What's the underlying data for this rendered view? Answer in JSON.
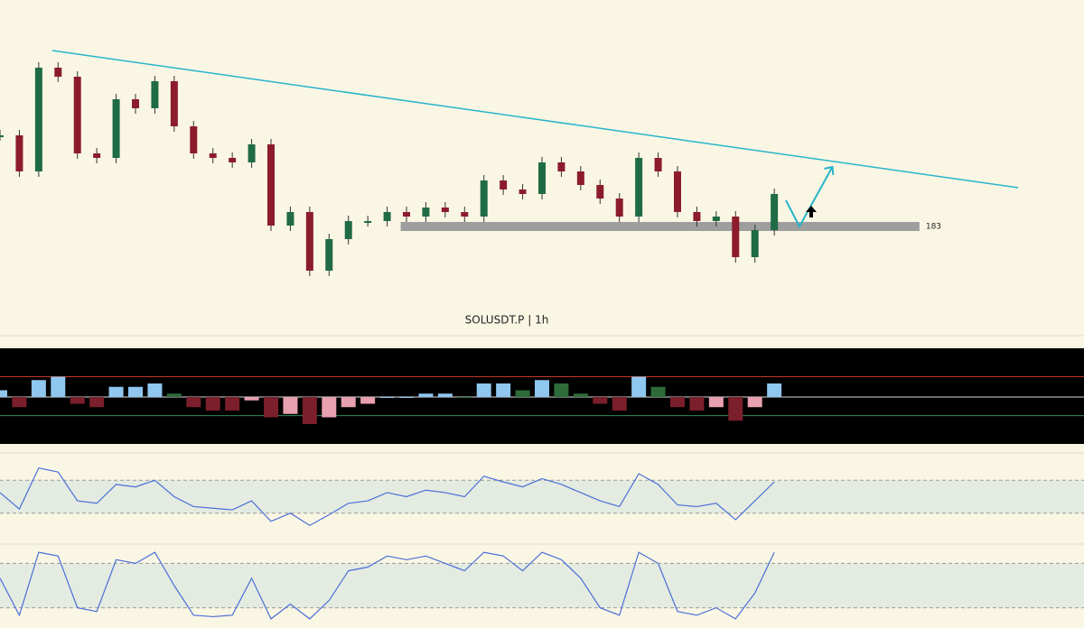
{
  "chart_data": {
    "type": "candlestick",
    "title": "SOLUSDT.P | 1h",
    "xlim": [
      0,
      56
    ],
    "ylim": [
      171,
      208
    ],
    "close": [
      193.1,
      189.1,
      200.6,
      199.6,
      191.1,
      190.6,
      197.1,
      196.1,
      199.1,
      194.1,
      191.1,
      190.6,
      190.1,
      192.1,
      183.1,
      184.6,
      178.1,
      181.6,
      183.6,
      183.6,
      184.6,
      184.1,
      185.1,
      184.6,
      184.1,
      188.1,
      187.1,
      186.6,
      190.1,
      189.1,
      187.6,
      186.1,
      184.1,
      190.6,
      189.1,
      184.6,
      183.6,
      184.1,
      179.6,
      182.6,
      186.6
    ],
    "up_color": "#1f6b45",
    "down_color": "#8c1c2c",
    "trendline": {
      "x": [
        2.7,
        52.6
      ],
      "y": [
        202.5,
        187.3
      ],
      "color": "#26b5c9"
    },
    "level": {
      "value": 183,
      "x": [
        20.7,
        47.5
      ],
      "color": "#9e9e9e"
    },
    "projection": {
      "x": [
        40.6,
        41.3,
        43.0
      ],
      "y": [
        185.9,
        183,
        189.6
      ],
      "color": "#26b5c9"
    },
    "indicators": [
      {
        "type": "histogram",
        "ylim": [
          -1.2,
          1.2
        ],
        "levels": [
          0.6,
          0,
          -0.55
        ],
        "level_colors": [
          "#c0392b",
          "#dddddd",
          "#2e8b57"
        ],
        "values": [
          0.2,
          -0.3,
          0.5,
          0.6,
          -0.2,
          -0.3,
          0.3,
          0.3,
          0.4,
          0.1,
          -0.3,
          -0.4,
          -0.4,
          -0.1,
          -0.6,
          -0.5,
          -0.8,
          -0.6,
          -0.3,
          -0.2,
          0.0,
          0.0,
          0.1,
          0.1,
          0.0,
          0.4,
          0.4,
          0.2,
          0.5,
          0.4,
          0.1,
          -0.2,
          -0.4,
          0.6,
          0.3,
          -0.3,
          -0.4,
          -0.3,
          -0.7,
          -0.3,
          0.4
        ]
      },
      {
        "type": "line",
        "ylim": [
          0,
          100
        ],
        "band": [
          30,
          70
        ],
        "color": "#4a6fd8",
        "values": [
          55,
          35,
          85,
          80,
          45,
          42,
          65,
          62,
          70,
          50,
          38,
          36,
          34,
          45,
          20,
          30,
          15,
          28,
          42,
          45,
          55,
          50,
          58,
          55,
          50,
          75,
          68,
          62,
          72,
          65,
          55,
          45,
          38,
          78,
          65,
          40,
          38,
          42,
          22,
          45,
          68
        ]
      },
      {
        "type": "line",
        "ylim": [
          0,
          100
        ],
        "band": [
          20,
          80
        ],
        "color": "#4a6fd8",
        "values": [
          60,
          10,
          95,
          90,
          20,
          15,
          85,
          80,
          95,
          50,
          10,
          8,
          10,
          60,
          5,
          25,
          5,
          30,
          70,
          75,
          90,
          85,
          90,
          80,
          70,
          95,
          90,
          70,
          95,
          85,
          60,
          20,
          10,
          95,
          80,
          15,
          10,
          20,
          5,
          40,
          95
        ]
      }
    ]
  }
}
